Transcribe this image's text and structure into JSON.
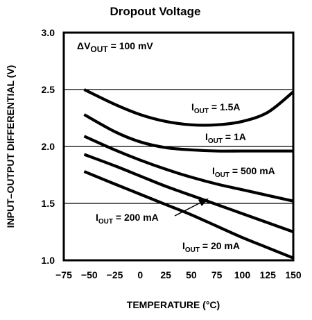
{
  "chart_data": {
    "type": "line",
    "title": "Dropout Voltage",
    "xlabel": "TEMPERATURE (°C)",
    "ylabel": "INPUT–OUTPUT DIFFERENTIAL (V)",
    "xlim": [
      -75,
      150
    ],
    "ylim": [
      1.0,
      3.0
    ],
    "x_ticks": [
      -75,
      -50,
      -25,
      0,
      25,
      50,
      75,
      100,
      125,
      150
    ],
    "x_tick_labels": [
      "−75",
      "−50",
      "−25",
      "0",
      "25",
      "50",
      "75",
      "100",
      "125",
      "150"
    ],
    "y_ticks": [
      1.0,
      1.5,
      2.0,
      2.5,
      3.0
    ],
    "y_tick_labels": [
      "1.0",
      "1.5",
      "2.0",
      "2.5",
      "3.0"
    ],
    "grid": "horizontal",
    "annotation": {
      "prefix": "ΔV",
      "sub": "OUT",
      "suffix": " = 100 mV"
    },
    "series": [
      {
        "name": "I_OUT = 1.5A",
        "label": {
          "prefix": "I",
          "sub": "OUT",
          "suffix": " = 1.5A"
        },
        "x": [
          -55,
          -25,
          0,
          25,
          50,
          75,
          100,
          125,
          150
        ],
        "y": [
          2.5,
          2.37,
          2.28,
          2.22,
          2.19,
          2.19,
          2.22,
          2.3,
          2.48
        ]
      },
      {
        "name": "I_OUT = 1A",
        "label": {
          "prefix": "I",
          "sub": "OUT",
          "suffix": " = 1A"
        },
        "x": [
          -55,
          -25,
          0,
          25,
          50,
          75,
          100,
          125,
          150
        ],
        "y": [
          2.28,
          2.13,
          2.04,
          1.99,
          1.97,
          1.96,
          1.96,
          1.96,
          1.96
        ]
      },
      {
        "name": "I_OUT = 500 mA",
        "label": {
          "prefix": "I",
          "sub": "OUT",
          "suffix": " = 500 mA"
        },
        "x": [
          -55,
          -25,
          0,
          25,
          50,
          75,
          100,
          125,
          150
        ],
        "y": [
          2.09,
          1.97,
          1.88,
          1.8,
          1.73,
          1.67,
          1.62,
          1.57,
          1.52
        ]
      },
      {
        "name": "I_OUT = 200 mA",
        "label": {
          "prefix": "I",
          "sub": "OUT",
          "suffix": " = 200 mA"
        },
        "x": [
          -55,
          -25,
          0,
          25,
          50,
          75,
          100,
          125,
          150
        ],
        "y": [
          1.93,
          1.83,
          1.74,
          1.65,
          1.57,
          1.49,
          1.41,
          1.33,
          1.25
        ]
      },
      {
        "name": "I_OUT = 20 mA",
        "label": {
          "prefix": "I",
          "sub": "OUT",
          "suffix": " = 20 mA"
        },
        "x": [
          -55,
          -25,
          0,
          25,
          50,
          75,
          100,
          125,
          150
        ],
        "y": [
          1.78,
          1.67,
          1.58,
          1.49,
          1.4,
          1.3,
          1.2,
          1.11,
          1.02
        ]
      }
    ]
  }
}
